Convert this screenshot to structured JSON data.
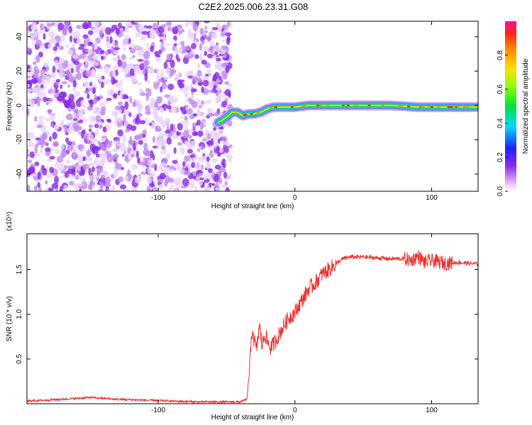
{
  "title": "C2E2.2025.006.23.31.G08",
  "colors": {
    "snr_line": "#e8302f",
    "background": "#ffffff",
    "scatter": "#8a2be2"
  },
  "chart_data": [
    {
      "type": "heatmap",
      "xlabel": "Height of straight line (km)",
      "ylabel": "Frequency (Hz)",
      "xlim": [
        -196,
        134
      ],
      "ylim": [
        -50,
        49
      ],
      "xticks": [
        -100,
        0,
        100
      ],
      "yticks": [
        -40,
        -20,
        0,
        20,
        40
      ],
      "xtick_labels": [
        "-100",
        "0",
        "100"
      ],
      "ytick_labels": [
        "-40",
        "-20",
        "0",
        "20",
        "40"
      ],
      "colorbar": {
        "label": "Normalized spectral amplitude",
        "range": [
          0,
          1
        ],
        "ticks": [
          0.0,
          0.2,
          0.4,
          0.6,
          0.8
        ],
        "tick_labels": [
          "0.0",
          "0.2",
          "0.4",
          "0.6",
          "0.8"
        ]
      },
      "noise_region_x": [
        -196,
        -47
      ],
      "signal_track": {
        "x": [
          -56,
          -50,
          -46,
          -42,
          -38,
          -34,
          -30,
          -25,
          -20,
          -15,
          -10,
          -5,
          0,
          10,
          30,
          50,
          70,
          90,
          110,
          134
        ],
        "y": [
          -10,
          -7,
          -4,
          -4,
          -6,
          -5,
          -5,
          -4,
          -2,
          -1,
          -1,
          -1,
          -1,
          0,
          0,
          0,
          0,
          -1,
          -1,
          -1
        ]
      }
    },
    {
      "type": "line",
      "xlabel": "Height of straight line (km)",
      "ylabel": "SNR (10 * v/v)",
      "y_multiplier_label": "(x10⁴)",
      "xlim": [
        -196,
        134
      ],
      "ylim": [
        0.0,
        1.9
      ],
      "xticks": [
        -100,
        0,
        100
      ],
      "yticks": [
        0.5,
        1.0,
        1.5
      ],
      "xtick_labels": [
        "-100",
        "0",
        "100"
      ],
      "ytick_labels": [
        "0.5",
        "1.0",
        "1.5"
      ],
      "series": [
        {
          "x": [
            -196,
            -170,
            -150,
            -130,
            -110,
            -90,
            -70,
            -50,
            -40,
            -35,
            -33,
            -31,
            -30,
            -28,
            -26,
            -24,
            -22,
            -20,
            -18,
            -15,
            -10,
            -5,
            0,
            5,
            10,
            15,
            20,
            25,
            30,
            35,
            40,
            50,
            60,
            70,
            80,
            85,
            90,
            95,
            100,
            110,
            120,
            134
          ],
          "y": [
            0.03,
            0.05,
            0.07,
            0.05,
            0.04,
            0.03,
            0.02,
            0.02,
            0.02,
            0.05,
            0.45,
            0.85,
            0.72,
            0.6,
            0.88,
            0.65,
            0.78,
            0.7,
            0.62,
            0.68,
            0.82,
            0.95,
            1.02,
            1.15,
            1.28,
            1.35,
            1.45,
            1.5,
            1.56,
            1.62,
            1.64,
            1.64,
            1.63,
            1.62,
            1.62,
            1.6,
            1.65,
            1.58,
            1.6,
            1.57,
            1.58,
            1.56
          ]
        }
      ]
    }
  ]
}
